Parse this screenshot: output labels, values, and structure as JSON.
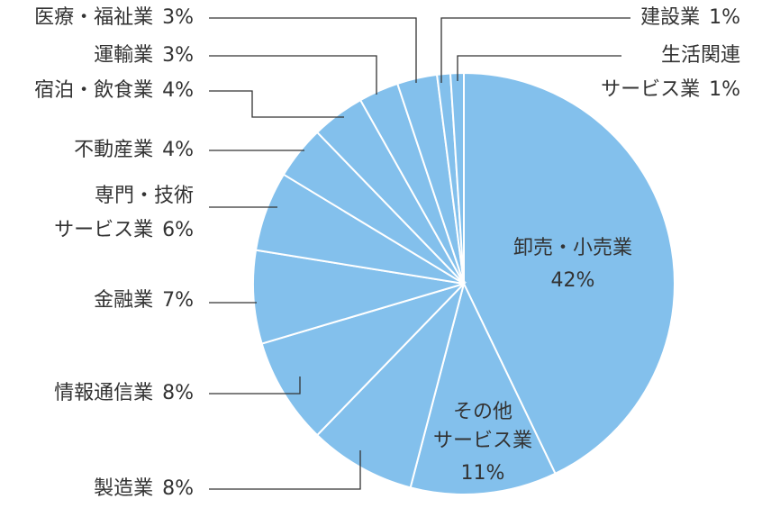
{
  "chart_data": {
    "type": "pie",
    "categories": [
      "卸売・小売業",
      "その他\nサービス業",
      "製造業",
      "情報通信業",
      "金融業",
      "専門・技術\nサービス業",
      "不動産業",
      "宿泊・飲食業",
      "運輸業",
      "医療・福祉業",
      "建設業",
      "生活関連\nサービス業"
    ],
    "values": [
      42,
      11,
      8,
      8,
      7,
      6,
      4,
      4,
      3,
      3,
      1,
      1
    ],
    "value_labels": [
      "42%",
      "11%",
      "8%",
      "8%",
      "7%",
      "6%",
      "4%",
      "4%",
      "3%",
      "3%",
      "1%",
      "1%"
    ],
    "color": "#83c0ec"
  }
}
